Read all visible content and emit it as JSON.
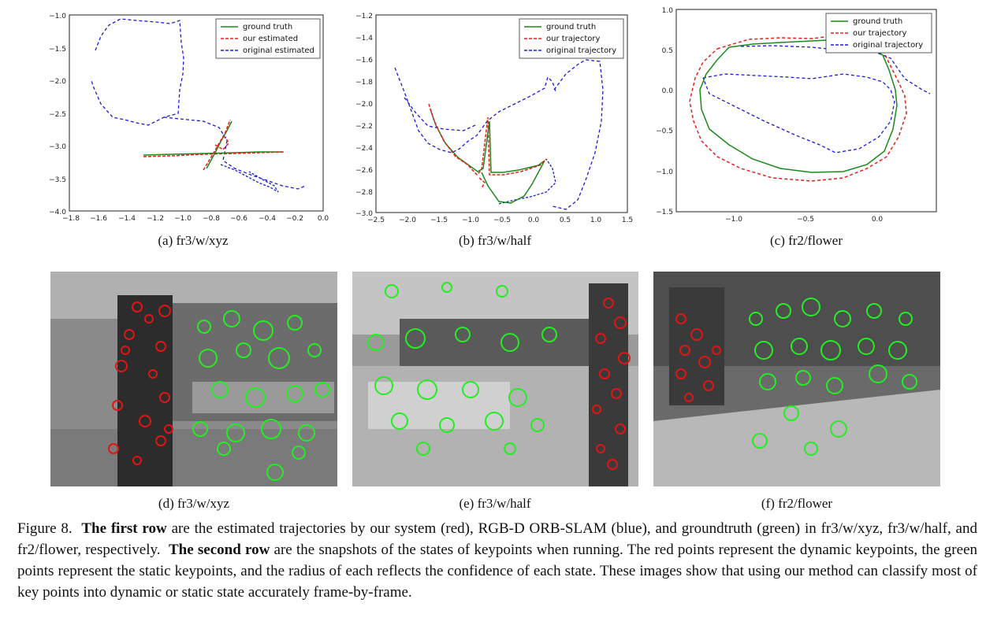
{
  "plots": [
    {
      "subcaption": "(a)  fr3/w/xyz",
      "legend": [
        "ground truth",
        "our estimated",
        "original estimated"
      ],
      "xticks": [
        "−1.8",
        "−1.6",
        "−1.4",
        "−1.2",
        "−1.0",
        "−0.8",
        "−0.6",
        "−0.4",
        "−0.2",
        "0.0"
      ],
      "yticks": [
        "−1.0",
        "−1.5",
        "−2.0",
        "−2.5",
        "−3.0",
        "−3.5",
        "−4.0"
      ],
      "colors": {
        "ground_truth": "#1a8a1a",
        "estimated": "#e32020",
        "original": "#1a1adc"
      }
    },
    {
      "subcaption": "(b)  fr3/w/half",
      "legend": [
        "ground truth",
        "our trajectory",
        "original trajectory"
      ],
      "xticks": [
        "−2.5",
        "−2.0",
        "−1.5",
        "−1.0",
        "−0.5",
        "0.0",
        "0.5",
        "1.0",
        "1.5"
      ],
      "yticks": [
        "−1.2",
        "−1.4",
        "−1.6",
        "−1.8",
        "−2.0",
        "−2.2",
        "−2.4",
        "−2.6",
        "−2.8",
        "−3.0"
      ]
    },
    {
      "subcaption": "(c)  fr2/flower",
      "legend": [
        "ground truth",
        "our trajectory",
        "original trajectory"
      ],
      "xticks": [
        "−1.0",
        "−0.5",
        "0.0"
      ],
      "yticks": [
        "1.0",
        "0.5",
        "0.0",
        "−0.5",
        "−1.0",
        "−1.5"
      ]
    }
  ],
  "photos": [
    {
      "subcaption": "(d)  fr3/w/xyz"
    },
    {
      "subcaption": "(e)  fr3/w/half"
    },
    {
      "subcaption": "(f)  fr2/flower"
    }
  ],
  "caption": {
    "fig_label": "Figure 8.",
    "bold1": "The first row",
    "text1": " are the estimated trajectories by our system (red), RGB-D ORB-SLAM (blue), and groundtruth (green) in fr3/w/xyz, fr3/w/half, and fr2/flower, respectively.",
    "bold2": "The second row",
    "text2": " are the snapshots of the states of keypoints when running. The red points represent the dynamic keypoints, the green points represent the static keypoints, and the radius of each reflects the confidence of each state. These images show that using our method can classify most of key points into dynamic or static state accurately frame-by-frame."
  }
}
